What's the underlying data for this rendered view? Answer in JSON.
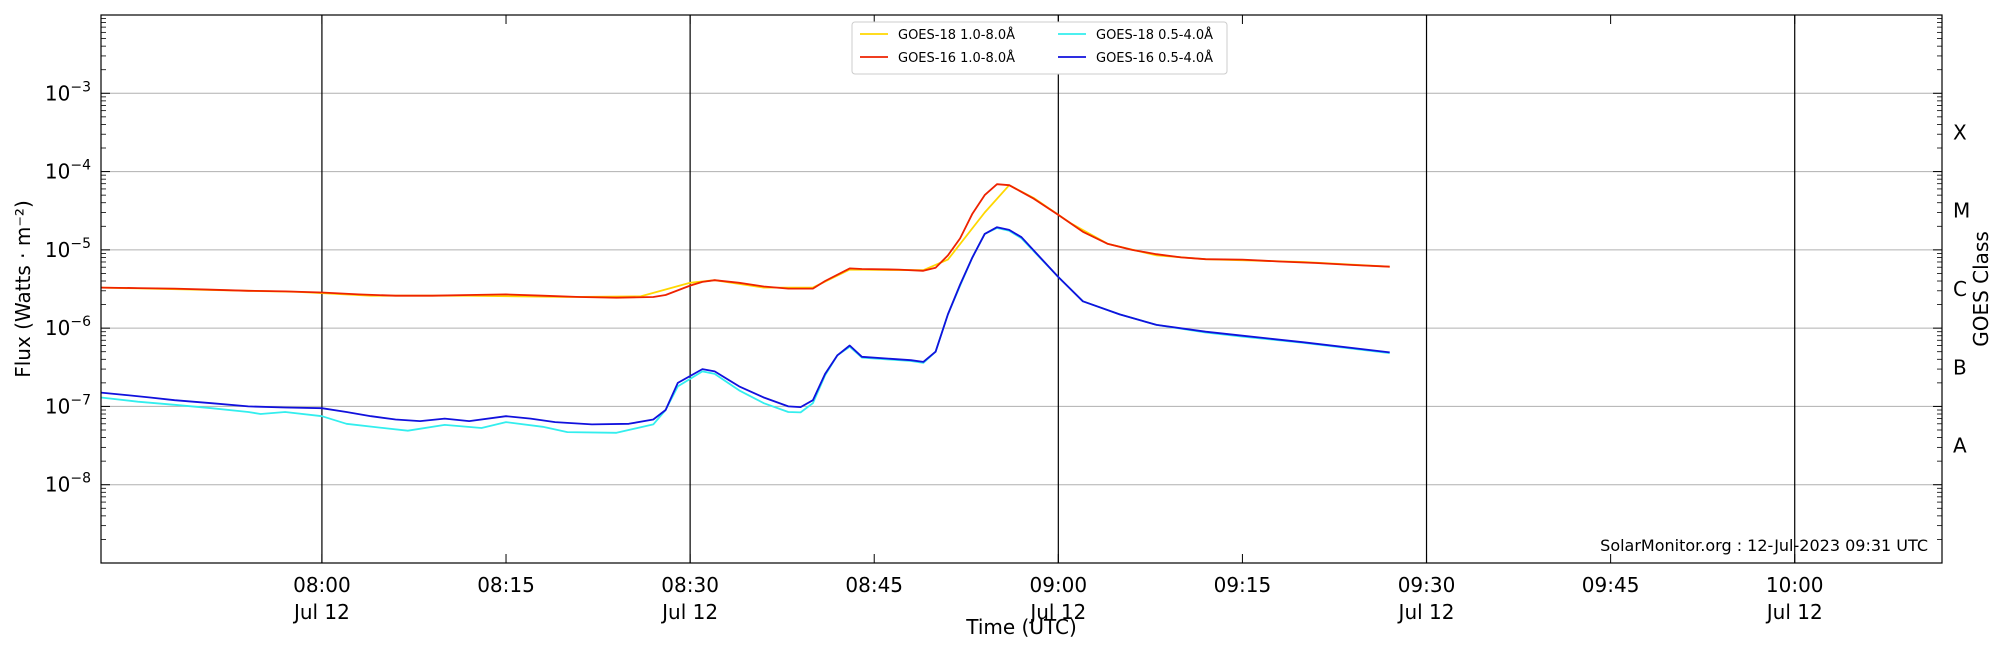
{
  "chart_data": {
    "type": "line",
    "title": "",
    "xlabel": "Time (UTC)",
    "ylabel": "Flux (Watts · m⁻²)",
    "y2label": "GOES Class",
    "yscale": "log",
    "ylim": [
      1e-09,
      0.01
    ],
    "xlim": [
      "07:42",
      "10:12"
    ],
    "grid": "horizontal at decades",
    "legend_placement": "top-center",
    "credit": "SolarMonitor.org : 12-Jul-2023 09:31 UTC",
    "y_ticks": [
      {
        "value": 0.001,
        "base": "10",
        "exp": "−3"
      },
      {
        "value": 0.0001,
        "base": "10",
        "exp": "−4"
      },
      {
        "value": 1e-05,
        "base": "10",
        "exp": "−5"
      },
      {
        "value": 1e-06,
        "base": "10",
        "exp": "−6"
      },
      {
        "value": 1e-07,
        "base": "10",
        "exp": "−7"
      },
      {
        "value": 1e-08,
        "base": "10",
        "exp": "−8"
      }
    ],
    "x_ticks": [
      {
        "time": "08:00",
        "line1": "08:00",
        "line2": "Jul 12",
        "vline": true
      },
      {
        "time": "08:15",
        "line1": "08:15",
        "line2": "",
        "vline": false
      },
      {
        "time": "08:30",
        "line1": "08:30",
        "line2": "Jul 12",
        "vline": true
      },
      {
        "time": "08:45",
        "line1": "08:45",
        "line2": "",
        "vline": false
      },
      {
        "time": "09:00",
        "line1": "09:00",
        "line2": "Jul 12",
        "vline": true
      },
      {
        "time": "09:15",
        "line1": "09:15",
        "line2": "",
        "vline": false
      },
      {
        "time": "09:30",
        "line1": "09:30",
        "line2": "Jul 12",
        "vline": true
      },
      {
        "time": "09:45",
        "line1": "09:45",
        "line2": "",
        "vline": false
      },
      {
        "time": "10:00",
        "line1": "10:00",
        "line2": "Jul 12",
        "vline": true
      }
    ],
    "goes_classes": [
      {
        "label": "X",
        "value": 0.000316
      },
      {
        "label": "M",
        "value": 3.16e-05
      },
      {
        "label": "C",
        "value": 3.16e-06
      },
      {
        "label": "B",
        "value": 3.16e-07
      },
      {
        "label": "A",
        "value": 3.16e-08
      }
    ],
    "series": [
      {
        "name": "GOES-18 1.0-8.0Å",
        "color": "#ffd700",
        "points": [
          [
            "07:42",
            3.3e-06
          ],
          [
            "07:50",
            3.1e-06
          ],
          [
            "07:58",
            2.9e-06
          ],
          [
            "08:04",
            2.6e-06
          ],
          [
            "08:12",
            2.6e-06
          ],
          [
            "08:20",
            2.5e-06
          ],
          [
            "08:26",
            2.55e-06
          ],
          [
            "08:30",
            3.8e-06
          ],
          [
            "08:32",
            4.1e-06
          ],
          [
            "08:36",
            3.3e-06
          ],
          [
            "08:40",
            3.3e-06
          ],
          [
            "08:43",
            5.6e-06
          ],
          [
            "08:49",
            5.5e-06
          ],
          [
            "08:51",
            7.5e-06
          ],
          [
            "08:54",
            3e-05
          ],
          [
            "08:56",
            6.7e-05
          ],
          [
            "08:58",
            4.6e-05
          ],
          [
            "09:01",
            2.2e-05
          ],
          [
            "09:04",
            1.2e-05
          ],
          [
            "09:08",
            8.5e-06
          ],
          [
            "09:12",
            7.6e-06
          ],
          [
            "09:20",
            7e-06
          ],
          [
            "09:27",
            6.1e-06
          ]
        ]
      },
      {
        "name": "GOES-16 1.0-8.0Å",
        "color": "#ee2200",
        "points": [
          [
            "07:42",
            3.3e-06
          ],
          [
            "07:45",
            3.25e-06
          ],
          [
            "07:48",
            3.2e-06
          ],
          [
            "07:51",
            3.1e-06
          ],
          [
            "07:54",
            3e-06
          ],
          [
            "07:57",
            2.95e-06
          ],
          [
            "08:00",
            2.85e-06
          ],
          [
            "08:03",
            2.7e-06
          ],
          [
            "08:06",
            2.6e-06
          ],
          [
            "08:09",
            2.6e-06
          ],
          [
            "08:12",
            2.65e-06
          ],
          [
            "08:15",
            2.7e-06
          ],
          [
            "08:18",
            2.6e-06
          ],
          [
            "08:21",
            2.5e-06
          ],
          [
            "08:24",
            2.45e-06
          ],
          [
            "08:27",
            2.5e-06
          ],
          [
            "08:28",
            2.65e-06
          ],
          [
            "08:30",
            3.5e-06
          ],
          [
            "08:31",
            3.9e-06
          ],
          [
            "08:32",
            4.1e-06
          ],
          [
            "08:34",
            3.8e-06
          ],
          [
            "08:36",
            3.4e-06
          ],
          [
            "08:38",
            3.2e-06
          ],
          [
            "08:40",
            3.2e-06
          ],
          [
            "08:41",
            4e-06
          ],
          [
            "08:43",
            5.8e-06
          ],
          [
            "08:44",
            5.7e-06
          ],
          [
            "08:47",
            5.6e-06
          ],
          [
            "08:49",
            5.4e-06
          ],
          [
            "08:50",
            5.9e-06
          ],
          [
            "08:51",
            8.5e-06
          ],
          [
            "08:52",
            1.4e-05
          ],
          [
            "08:53",
            2.9e-05
          ],
          [
            "08:54",
            5e-05
          ],
          [
            "08:55",
            6.9e-05
          ],
          [
            "08:56",
            6.7e-05
          ],
          [
            "08:57",
            5.5e-05
          ],
          [
            "08:58",
            4.5e-05
          ],
          [
            "09:00",
            2.8e-05
          ],
          [
            "09:02",
            1.7e-05
          ],
          [
            "09:04",
            1.2e-05
          ],
          [
            "09:06",
            1e-05
          ],
          [
            "09:08",
            8.8e-06
          ],
          [
            "09:10",
            8e-06
          ],
          [
            "09:12",
            7.6e-06
          ],
          [
            "09:15",
            7.5e-06
          ],
          [
            "09:18",
            7.1e-06
          ],
          [
            "09:21",
            6.8e-06
          ],
          [
            "09:24",
            6.4e-06
          ],
          [
            "09:27",
            6.1e-06
          ]
        ]
      },
      {
        "name": "GOES-18 0.5-4.0Å",
        "color": "#33eeee",
        "points": [
          [
            "07:42",
            1.3e-07
          ],
          [
            "07:45",
            1.15e-07
          ],
          [
            "07:48",
            1.05e-07
          ],
          [
            "07:51",
            9.5e-08
          ],
          [
            "07:54",
            8.5e-08
          ],
          [
            "07:55",
            8e-08
          ],
          [
            "07:57",
            8.5e-08
          ],
          [
            "08:00",
            7.5e-08
          ],
          [
            "08:02",
            6e-08
          ],
          [
            "08:05",
            5.3e-08
          ],
          [
            "08:07",
            4.9e-08
          ],
          [
            "08:10",
            5.8e-08
          ],
          [
            "08:13",
            5.3e-08
          ],
          [
            "08:15",
            6.3e-08
          ],
          [
            "08:18",
            5.5e-08
          ],
          [
            "08:20",
            4.7e-08
          ],
          [
            "08:24",
            4.6e-08
          ],
          [
            "08:27",
            5.9e-08
          ],
          [
            "08:28",
            9e-08
          ],
          [
            "08:29",
            1.8e-07
          ],
          [
            "08:31",
            2.8e-07
          ],
          [
            "08:32",
            2.6e-07
          ],
          [
            "08:34",
            1.6e-07
          ],
          [
            "08:36",
            1.1e-07
          ],
          [
            "08:38",
            8.5e-08
          ],
          [
            "08:39",
            8.4e-08
          ],
          [
            "08:40",
            1.1e-07
          ],
          [
            "08:41",
            2.5e-07
          ],
          [
            "08:42",
            4.5e-07
          ],
          [
            "08:43",
            5.8e-07
          ],
          [
            "08:44",
            4.2e-07
          ],
          [
            "08:46",
            4e-07
          ],
          [
            "08:48",
            3.8e-07
          ],
          [
            "08:49",
            3.6e-07
          ],
          [
            "08:50",
            5e-07
          ],
          [
            "08:51",
            1.5e-06
          ],
          [
            "08:52",
            3.5e-06
          ],
          [
            "08:53",
            8e-06
          ],
          [
            "08:54",
            1.6e-05
          ],
          [
            "08:55",
            1.9e-05
          ],
          [
            "08:56",
            1.75e-05
          ],
          [
            "08:57",
            1.4e-05
          ],
          [
            "09:00",
            4.5e-06
          ],
          [
            "09:02",
            2.2e-06
          ],
          [
            "09:05",
            1.5e-06
          ],
          [
            "09:08",
            1.1e-06
          ],
          [
            "09:12",
            8.8e-07
          ],
          [
            "09:15",
            7.8e-07
          ],
          [
            "09:20",
            6.5e-07
          ],
          [
            "09:27",
            4.8e-07
          ]
        ]
      },
      {
        "name": "GOES-16 0.5-4.0Å",
        "color": "#1111dd",
        "points": [
          [
            "07:42",
            1.5e-07
          ],
          [
            "07:44",
            1.4e-07
          ],
          [
            "07:46",
            1.3e-07
          ],
          [
            "07:48",
            1.2e-07
          ],
          [
            "07:51",
            1.1e-07
          ],
          [
            "07:54",
            1e-07
          ],
          [
            "07:57",
            9.7e-08
          ],
          [
            "08:00",
            9.5e-08
          ],
          [
            "08:02",
            8.5e-08
          ],
          [
            "08:04",
            7.5e-08
          ],
          [
            "08:06",
            6.8e-08
          ],
          [
            "08:08",
            6.5e-08
          ],
          [
            "08:10",
            7e-08
          ],
          [
            "08:12",
            6.5e-08
          ],
          [
            "08:15",
            7.5e-08
          ],
          [
            "08:17",
            7e-08
          ],
          [
            "08:19",
            6.3e-08
          ],
          [
            "08:22",
            5.9e-08
          ],
          [
            "08:25",
            6e-08
          ],
          [
            "08:27",
            6.8e-08
          ],
          [
            "08:28",
            9e-08
          ],
          [
            "08:29",
            2e-07
          ],
          [
            "08:31",
            3e-07
          ],
          [
            "08:32",
            2.8e-07
          ],
          [
            "08:34",
            1.8e-07
          ],
          [
            "08:36",
            1.3e-07
          ],
          [
            "08:38",
            1e-07
          ],
          [
            "08:39",
            9.8e-08
          ],
          [
            "08:40",
            1.2e-07
          ],
          [
            "08:41",
            2.6e-07
          ],
          [
            "08:42",
            4.5e-07
          ],
          [
            "08:43",
            6e-07
          ],
          [
            "08:44",
            4.3e-07
          ],
          [
            "08:46",
            4.1e-07
          ],
          [
            "08:48",
            3.9e-07
          ],
          [
            "08:49",
            3.7e-07
          ],
          [
            "08:50",
            5e-07
          ],
          [
            "08:51",
            1.5e-06
          ],
          [
            "08:52",
            3.6e-06
          ],
          [
            "08:53",
            8e-06
          ],
          [
            "08:54",
            1.6e-05
          ],
          [
            "08:55",
            1.95e-05
          ],
          [
            "08:56",
            1.8e-05
          ],
          [
            "08:57",
            1.45e-05
          ],
          [
            "09:00",
            4.5e-06
          ],
          [
            "09:02",
            2.2e-06
          ],
          [
            "09:05",
            1.5e-06
          ],
          [
            "09:08",
            1.1e-06
          ],
          [
            "09:12",
            9e-07
          ],
          [
            "09:15",
            8e-07
          ],
          [
            "09:20",
            6.6e-07
          ],
          [
            "09:27",
            4.9e-07
          ]
        ]
      }
    ]
  }
}
